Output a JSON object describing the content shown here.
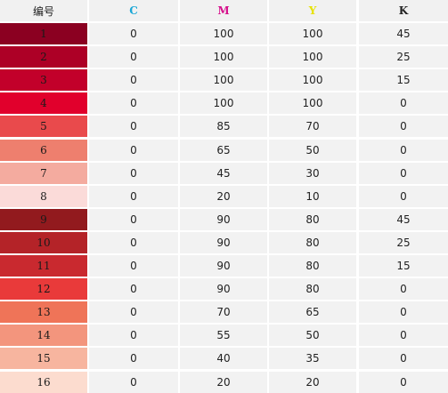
{
  "header": {
    "id": "编号",
    "c": "C",
    "m": "M",
    "y": "Y",
    "k": "K"
  },
  "header_colors": {
    "c": "#1aa7d6",
    "m": "#d6118c",
    "y": "#e7e200",
    "k": "#222222"
  },
  "rows": [
    {
      "id": "1",
      "c": "0",
      "m": "100",
      "y": "100",
      "k": "45",
      "color": "#8b0021"
    },
    {
      "id": "2",
      "c": "0",
      "m": "100",
      "y": "100",
      "k": "25",
      "color": "#ad0026"
    },
    {
      "id": "3",
      "c": "0",
      "m": "100",
      "y": "100",
      "k": "15",
      "color": "#c2002a"
    },
    {
      "id": "4",
      "c": "0",
      "m": "100",
      "y": "100",
      "k": "0",
      "color": "#e1002c"
    },
    {
      "id": "5",
      "c": "0",
      "m": "85",
      "y": "70",
      "k": "0",
      "color": "#e94a4c"
    },
    {
      "id": "6",
      "c": "0",
      "m": "65",
      "y": "50",
      "k": "0",
      "color": "#ee7f6e"
    },
    {
      "id": "7",
      "c": "0",
      "m": "45",
      "y": "30",
      "k": "0",
      "color": "#f4ab9f"
    },
    {
      "id": "8",
      "c": "0",
      "m": "20",
      "y": "10",
      "k": "0",
      "color": "#fbdbd9"
    },
    {
      "id": "9",
      "c": "0",
      "m": "90",
      "y": "80",
      "k": "45",
      "color": "#921a1e"
    },
    {
      "id": "10",
      "c": "0",
      "m": "90",
      "y": "80",
      "k": "25",
      "color": "#b42328"
    },
    {
      "id": "11",
      "c": "0",
      "m": "90",
      "y": "80",
      "k": "15",
      "color": "#c9292f"
    },
    {
      "id": "12",
      "c": "0",
      "m": "90",
      "y": "80",
      "k": "0",
      "color": "#e93a3a"
    },
    {
      "id": "13",
      "c": "0",
      "m": "70",
      "y": "65",
      "k": "0",
      "color": "#ef7458"
    },
    {
      "id": "14",
      "c": "0",
      "m": "55",
      "y": "50",
      "k": "0",
      "color": "#f3957d"
    },
    {
      "id": "15",
      "c": "0",
      "m": "40",
      "y": "35",
      "k": "0",
      "color": "#f7b59f"
    },
    {
      "id": "16",
      "c": "0",
      "m": "20",
      "y": "20",
      "k": "0",
      "color": "#fcdccf"
    }
  ]
}
